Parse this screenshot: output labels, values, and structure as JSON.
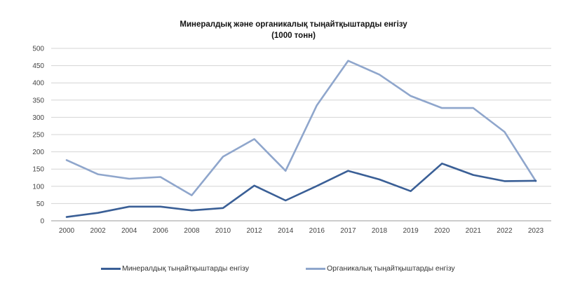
{
  "chart_data": {
    "type": "line",
    "title": "Минералдық және органикалық тыңайтқыштарды енгізу",
    "subtitle": "(1000 тонн)",
    "categories": [
      "2000",
      "2002",
      "2004",
      "2006",
      "2008",
      "2010",
      "2012",
      "2014",
      "2016",
      "2017",
      "2018",
      "2019",
      "2020",
      "2021",
      "2022",
      "2023"
    ],
    "series": [
      {
        "name": "Минералдық тыңайтқыштарды енгізу",
        "color": "#3a5f96",
        "values": [
          11,
          23,
          41,
          41,
          30,
          37,
          102,
          59,
          101,
          145,
          120,
          86,
          166,
          133,
          115,
          116
        ]
      },
      {
        "name": "Органикалық тыңайтқыштарды енгізу",
        "color": "#8fa6cc",
        "values": [
          176,
          135,
          122,
          127,
          74,
          186,
          237,
          145,
          335,
          464,
          424,
          362,
          327,
          327,
          258,
          115
        ]
      }
    ],
    "ylim": [
      0,
      500
    ],
    "yticks": [
      0,
      50,
      100,
      150,
      200,
      250,
      300,
      350,
      400,
      450,
      500
    ],
    "grid": true,
    "legend_position": "bottom"
  }
}
